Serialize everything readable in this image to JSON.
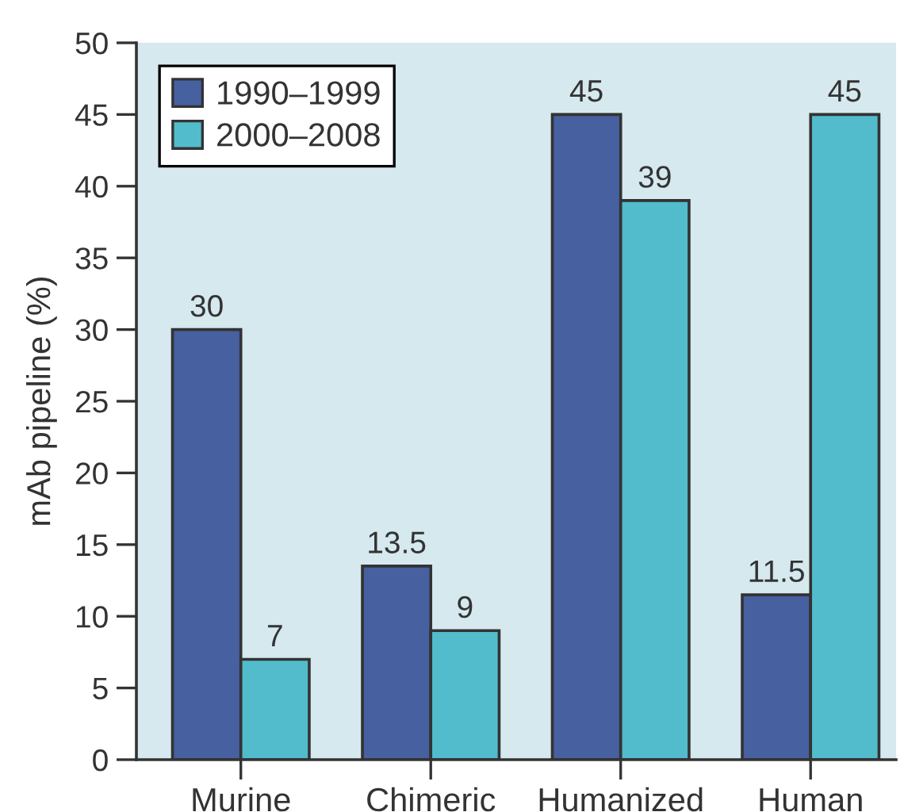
{
  "chart_data": {
    "type": "bar",
    "categories": [
      "Murine",
      "Chimeric",
      "Humanized",
      "Human"
    ],
    "ylabel": "mAb pipeline (%)",
    "ylim": [
      0,
      50
    ],
    "yticks": [
      0,
      5,
      10,
      15,
      20,
      25,
      30,
      35,
      40,
      45,
      50
    ],
    "series": [
      {
        "name": "1990–1999",
        "color": "#4660a0",
        "values": [
          30,
          13.5,
          45,
          11.5
        ]
      },
      {
        "name": "2000–2008",
        "color": "#52bccc",
        "values": [
          7,
          9,
          39,
          45
        ]
      }
    ],
    "data_labels": true,
    "legend": "top left"
  }
}
